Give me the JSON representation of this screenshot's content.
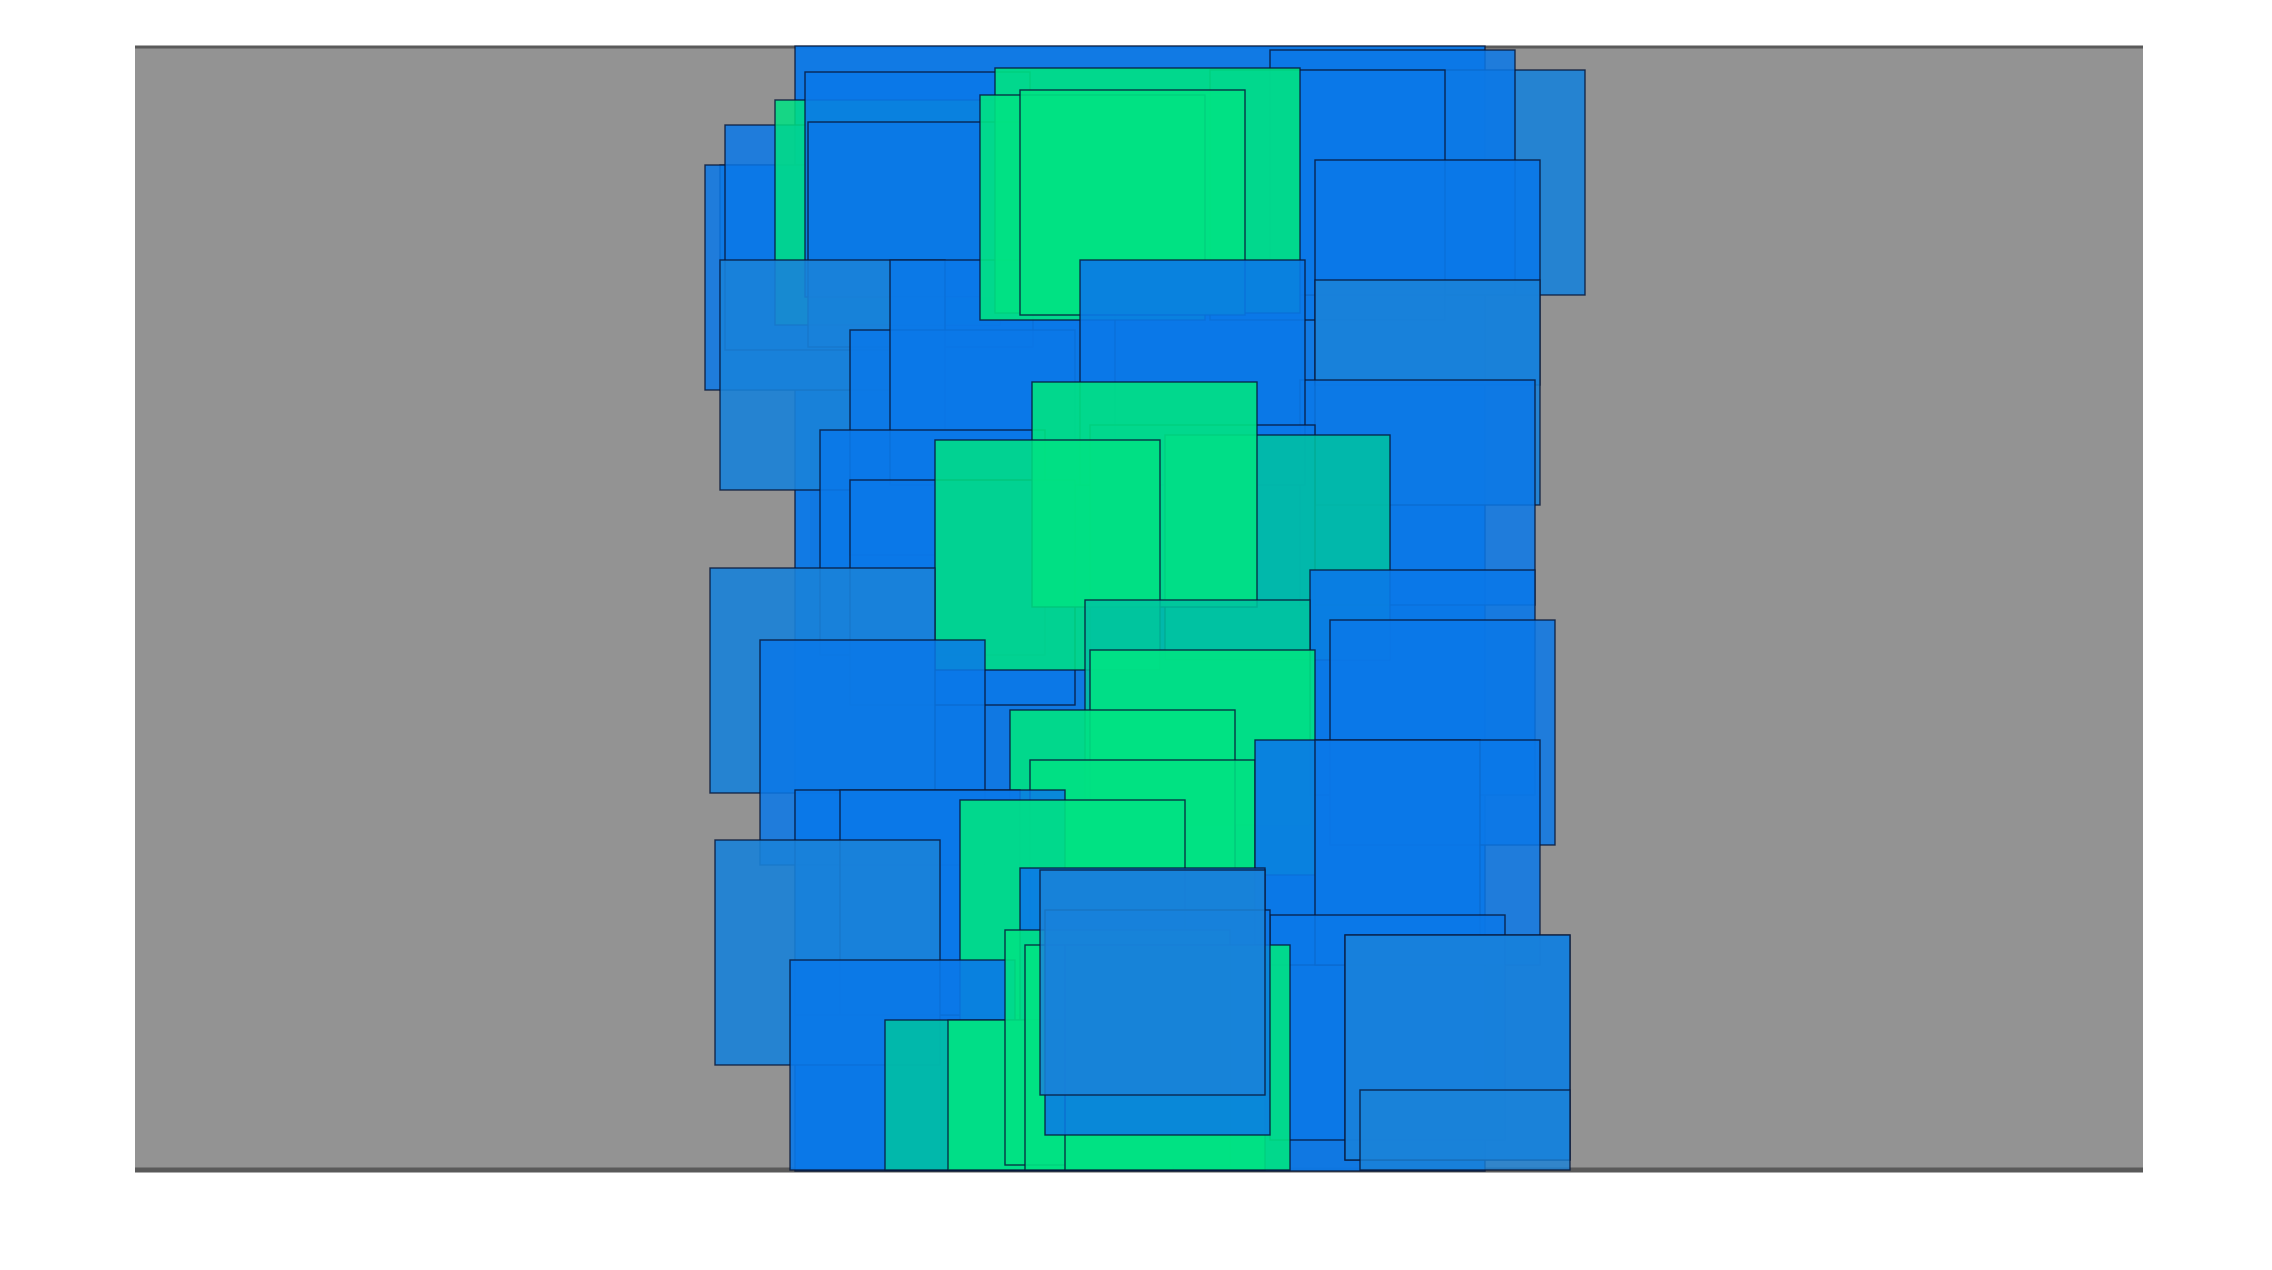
{
  "colors": {
    "page_background": "#ffffff",
    "panel_fill": "#939393",
    "panel_edge": "#5a5a5a",
    "shadow": "#6b4a35",
    "blue": "#0a78e8",
    "blue_muted": "#1a82d8",
    "green": "#00e283",
    "teal": "#00c3a0",
    "outline": "#08183a"
  },
  "composition": {
    "description_visible_text": "",
    "layer_count": 60
  }
}
